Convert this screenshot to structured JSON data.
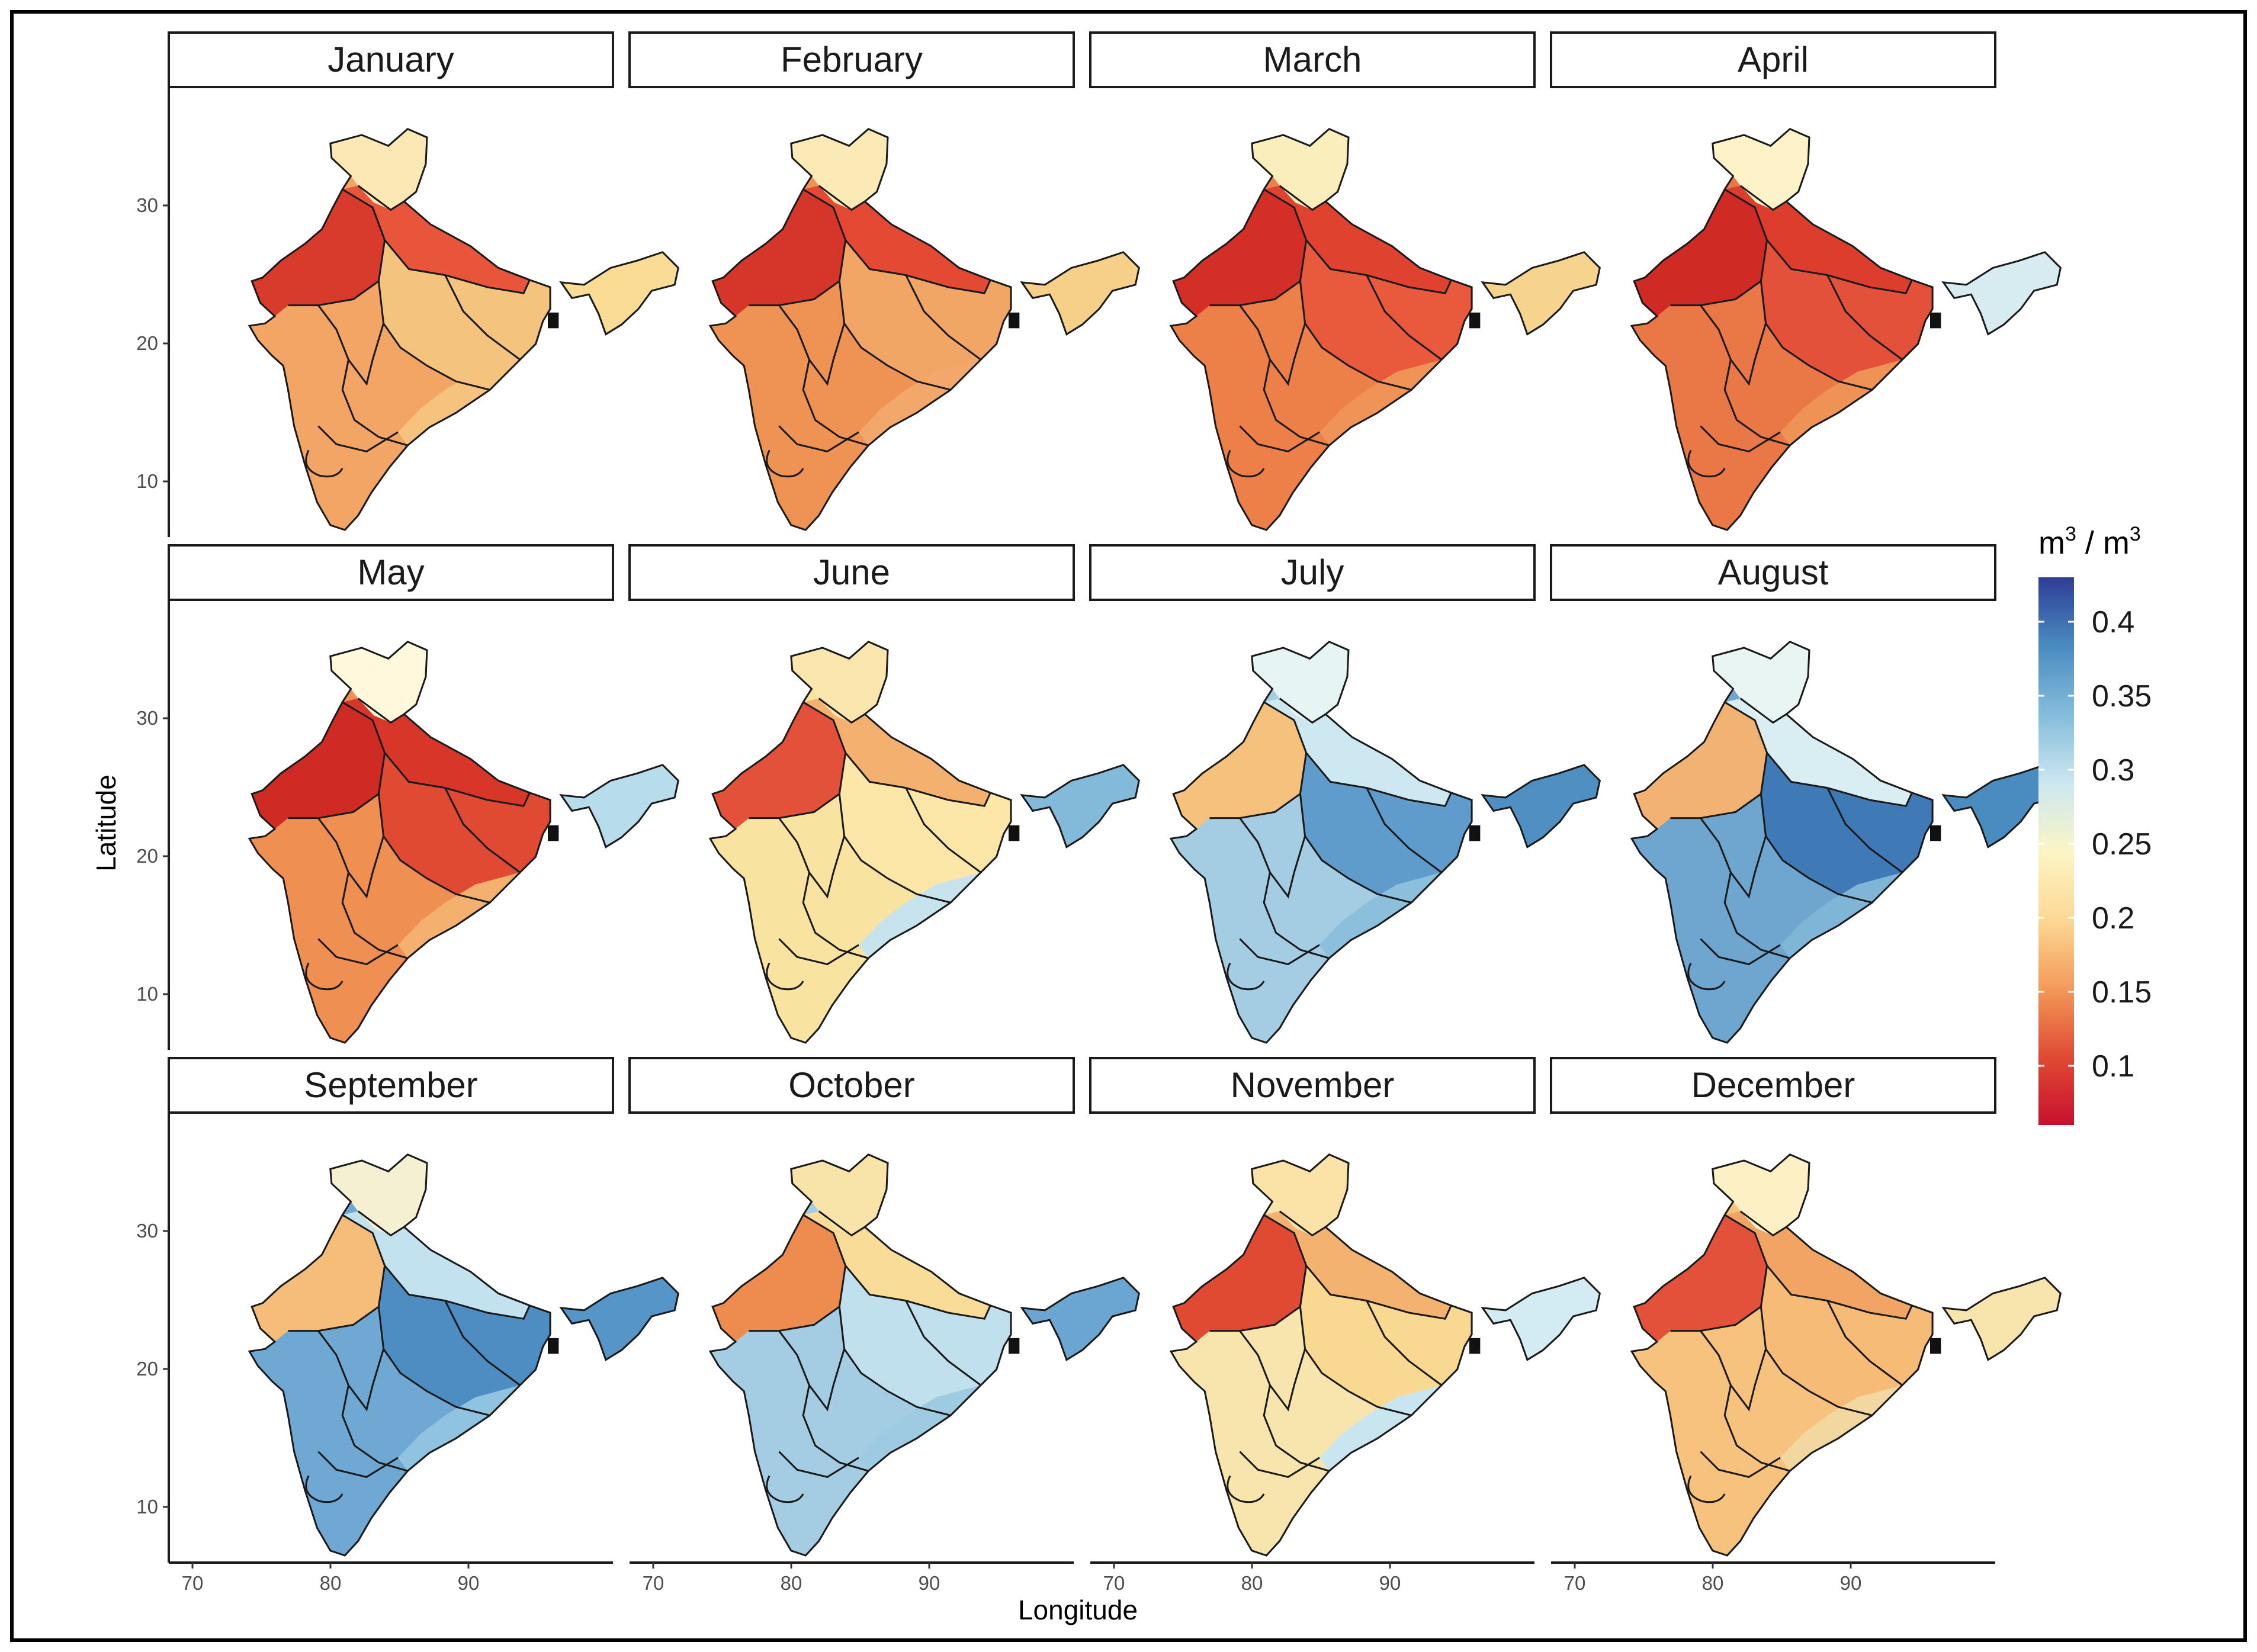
{
  "figure": {
    "panels": [
      {
        "month": "January",
        "south": "#f2a565",
        "north": "#e8553a",
        "northwest": "#d83a2c",
        "east": "#f4c47e",
        "himalaya": "#fbe8b4",
        "northeast": "#fadc95",
        "coast": "#f5c37d"
      },
      {
        "month": "February",
        "south": "#ef9355",
        "north": "#e44a33",
        "northwest": "#d6362a",
        "east": "#f1a666",
        "himalaya": "#fbeab6",
        "northeast": "#f6d089",
        "coast": "#f2a86a"
      },
      {
        "month": "March",
        "south": "#ec8048",
        "north": "#df422f",
        "northwest": "#d32f27",
        "east": "#e85a3b",
        "himalaya": "#fbeebd",
        "northeast": "#f7d48e",
        "coast": "#ef9356"
      },
      {
        "month": "April",
        "south": "#ea7846",
        "north": "#dc3d2d",
        "northwest": "#d02a25",
        "east": "#e4513a",
        "himalaya": "#fdf2c8",
        "northeast": "#d7ecf1",
        "coast": "#ef9255"
      },
      {
        "month": "May",
        "south": "#ef8f52",
        "north": "#d9362a",
        "northwest": "#d02a25",
        "east": "#e04a33",
        "himalaya": "#fff8dc",
        "northeast": "#b7dcec",
        "coast": "#f4b06f"
      },
      {
        "month": "June",
        "south": "#f9e3a1",
        "north": "#f4b06f",
        "northwest": "#e4513a",
        "east": "#fce7a9",
        "himalaya": "#fbe7ad",
        "northeast": "#83bada",
        "coast": "#c6e3ee"
      },
      {
        "month": "July",
        "south": "#a4cde3",
        "north": "#cde8f0",
        "northwest": "#f6c17c",
        "east": "#5f9ccb",
        "himalaya": "#e6f4f3",
        "northeast": "#4f8fc2",
        "coast": "#8bbfdc"
      },
      {
        "month": "August",
        "south": "#6ea6d0",
        "north": "#d9eef2",
        "northwest": "#f2b274",
        "east": "#3f7ab7",
        "himalaya": "#e8f5f2",
        "northeast": "#4a8bc0",
        "coast": "#7fb6d8"
      },
      {
        "month": "September",
        "south": "#6fa8d2",
        "north": "#c1e2ee",
        "northwest": "#f5bd79",
        "east": "#4d8dc2",
        "himalaya": "#f6f0d2",
        "northeast": "#5595c7",
        "coast": "#8fc3df"
      },
      {
        "month": "October",
        "south": "#a4cde3",
        "north": "#f8dc97",
        "northwest": "#ee8b4f",
        "east": "#bfe0ec",
        "himalaya": "#f8e3a8",
        "northeast": "#6aa6d1",
        "coast": "#9ecbe2"
      },
      {
        "month": "November",
        "south": "#f8e5ae",
        "north": "#f3b26f",
        "northwest": "#e04a33",
        "east": "#f9d891",
        "himalaya": "#fbe2a6",
        "northeast": "#d3ebf2",
        "coast": "#c9e5ef"
      },
      {
        "month": "December",
        "south": "#f6c27d",
        "north": "#f1a464",
        "northwest": "#e4513a",
        "east": "#f5bb77",
        "himalaya": "#fdf0c4",
        "northeast": "#f8e4ad",
        "coast": "#f2d8a0"
      }
    ],
    "y_axis": {
      "title": "Latitude",
      "ticks": [
        {
          "value": 30,
          "label": "30"
        },
        {
          "value": 20,
          "label": "20"
        },
        {
          "value": 10,
          "label": "10"
        }
      ]
    },
    "x_axis": {
      "title": "Longitude",
      "ticks": [
        {
          "value": 70,
          "label": "70"
        },
        {
          "value": 80,
          "label": "80"
        },
        {
          "value": 90,
          "label": "90"
        }
      ]
    },
    "legend": {
      "title_base": "m",
      "title_exp": "3",
      "title_sep": " / m",
      "title_exp2": "3",
      "range": [
        0.06,
        0.43
      ],
      "breaks": [
        {
          "value": 0.4,
          "label": "0.4"
        },
        {
          "value": 0.35,
          "label": "0.35"
        },
        {
          "value": 0.3,
          "label": "0.3"
        },
        {
          "value": 0.25,
          "label": "0.25"
        },
        {
          "value": 0.2,
          "label": "0.2"
        },
        {
          "value": 0.15,
          "label": "0.15"
        },
        {
          "value": 0.1,
          "label": "0.1"
        }
      ],
      "colors": [
        "#c8102e",
        "#e04a33",
        "#f39a59",
        "#fdd894",
        "#fbf5c6",
        "#cce7f0",
        "#84bcdb",
        "#4a8bc0",
        "#2e3d96"
      ]
    }
  }
}
